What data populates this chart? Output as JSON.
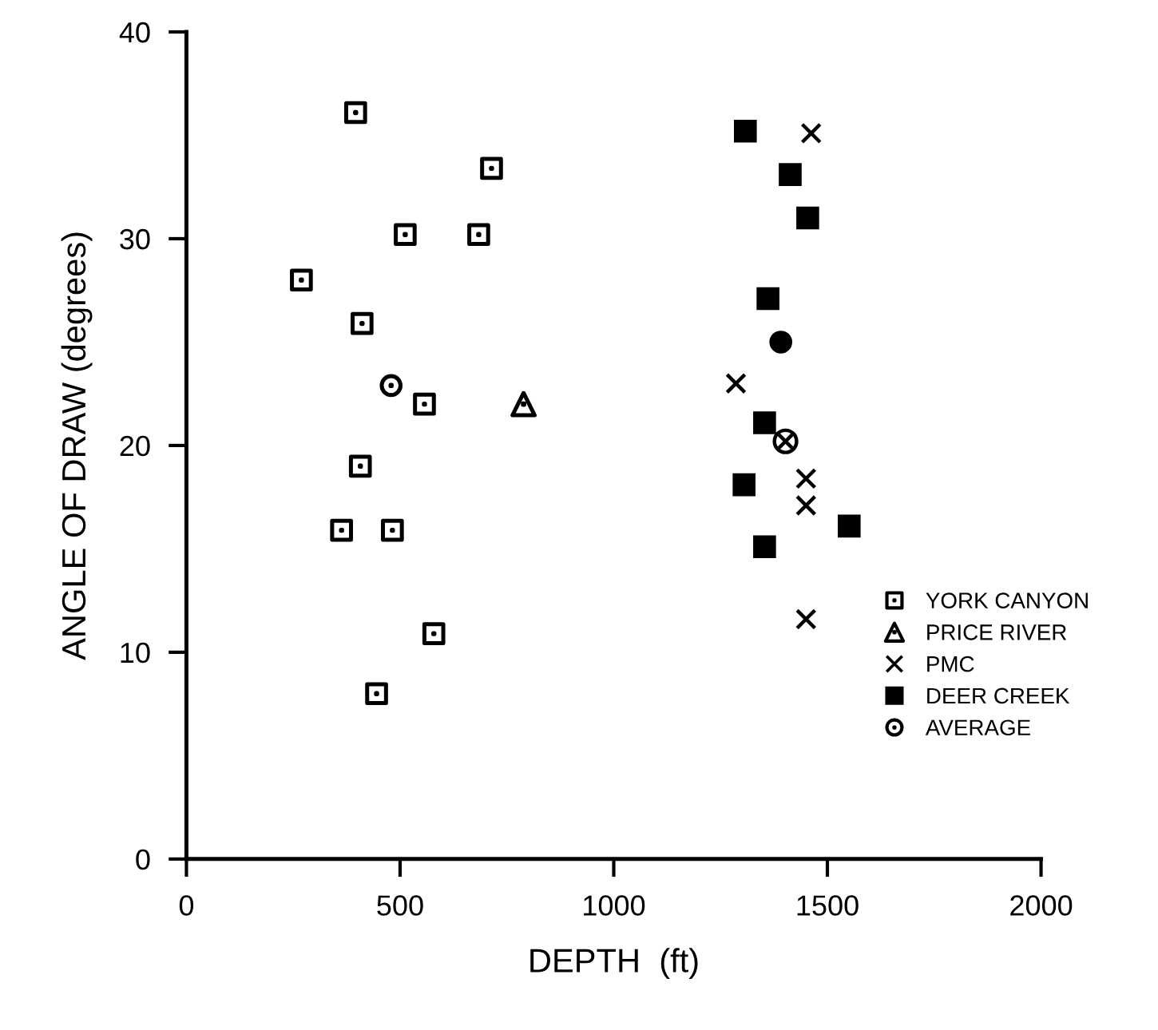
{
  "chart_data": {
    "type": "scatter",
    "xlabel": "DEPTH  (ft)",
    "ylabel": "ANGLE OF DRAW (degrees)",
    "xlim": [
      0,
      2000
    ],
    "xticks": [
      0,
      500,
      1000,
      1500,
      2000
    ],
    "ylim": [
      0,
      40
    ],
    "yticks": [
      0,
      10,
      20,
      30,
      40
    ],
    "legend": "bottom right",
    "series": [
      {
        "name": "YORK CANYON",
        "color": "#000000",
        "marker": "square",
        "x": [
          396,
          714,
          512,
          684,
          269,
          411,
          557,
          407,
          363,
          482,
          579,
          445
        ],
        "values": [
          36.1,
          33.4,
          30.2,
          30.2,
          28.0,
          25.9,
          22.0,
          19.0,
          15.9,
          15.9,
          10.9,
          8.0
        ]
      },
      {
        "name": "PRICE RIVER",
        "color": "#000000",
        "marker": "triangle",
        "x": [
          789
        ],
        "values": [
          22.0
        ]
      },
      {
        "name": "PMC",
        "color": "#000000",
        "marker": "cross",
        "x": [
          1462,
          1286,
          1450,
          1450,
          1450
        ],
        "values": [
          35.1,
          23.0,
          18.4,
          17.1,
          11.6
        ]
      },
      {
        "name": "DEER CREEK",
        "color": "#000000",
        "marker": "square",
        "x": [
          1308,
          1413,
          1454,
          1361,
          1353,
          1305,
          1353,
          1551
        ],
        "values": [
          35.2,
          33.1,
          31.0,
          27.1,
          21.1,
          18.1,
          15.1,
          16.1
        ]
      },
      {
        "name": "AVERAGE",
        "color": "#000000",
        "marker": "circle",
        "x": [
          479
        ],
        "values": [
          22.9
        ]
      },
      {
        "color": "#000000",
        "marker": "circle",
        "x": [
          1391
        ],
        "values": [
          25.0
        ]
      },
      {
        "color": "#000000",
        "marker": "circle",
        "x": [
          1402
        ],
        "values": [
          20.2
        ]
      }
    ]
  }
}
